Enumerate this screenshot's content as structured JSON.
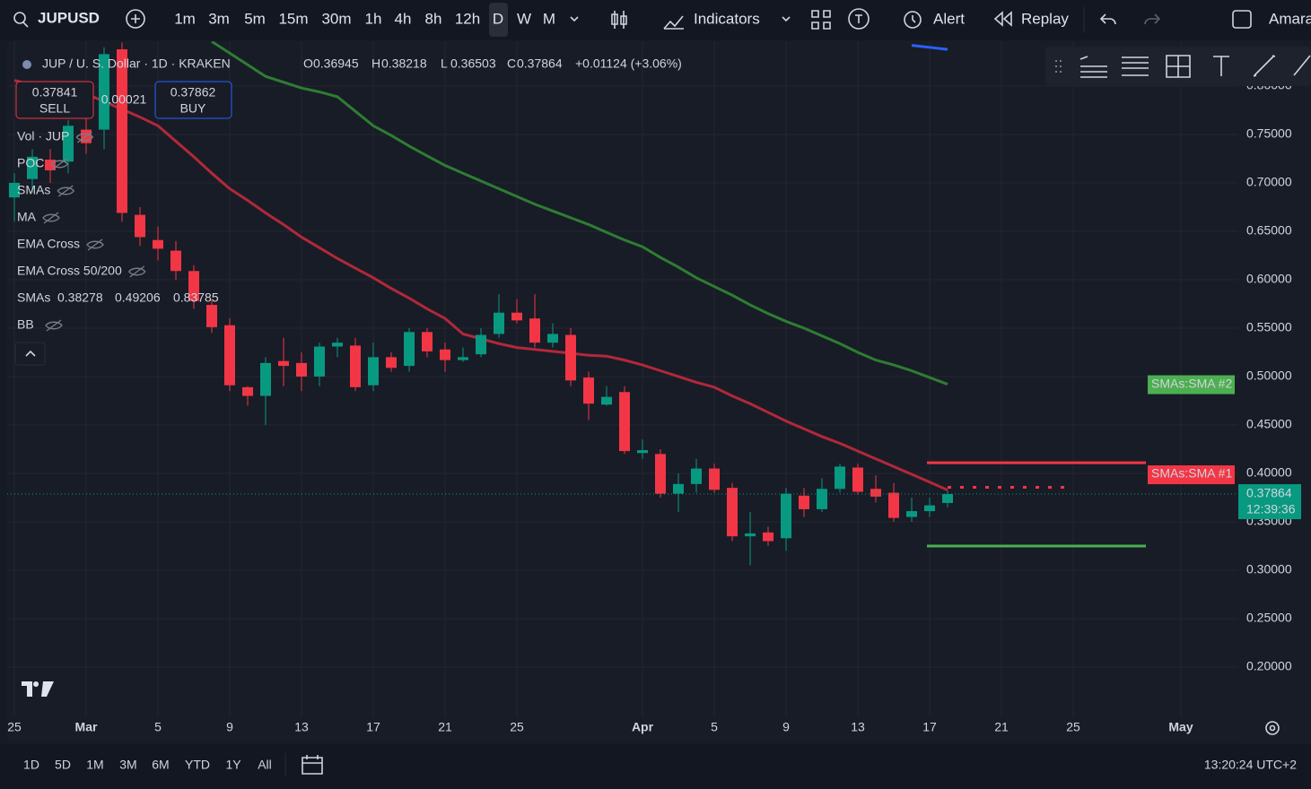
{
  "toolbar": {
    "symbol": "JUPUSD",
    "intervals": [
      "1m",
      "3m",
      "5m",
      "15m",
      "30m",
      "1h",
      "4h",
      "8h",
      "12h",
      "D",
      "W",
      "M"
    ],
    "indicators": "Indicators",
    "alert": "Alert",
    "replay": "Replay",
    "user": "Amara"
  },
  "legend": {
    "symbol": "JUP / U. S. Dollar · 1D · KRAKEN",
    "ohlc_labels": [
      "O",
      "H",
      "L",
      "C"
    ],
    "change": "+0.01124 (+3.06%)",
    "sell_price": "0.37841",
    "sell": "SELL",
    "spread": "0.00021",
    "buy_price": "0.37862",
    "buy": "BUY",
    "indicators": [
      "Vol · JUP",
      "POC",
      "SMAs",
      "MA",
      "EMA Cross",
      "EMA Cross 50/200"
    ],
    "smas": "SMAs",
    "bb": "BB"
  },
  "chart_data": {
    "type": "candlestick",
    "categories": [
      "25",
      null,
      null,
      null,
      "Mar",
      null,
      null,
      null,
      "5",
      null,
      null,
      null,
      "9",
      null,
      null,
      null,
      "13",
      null,
      null,
      null,
      "17",
      null,
      null,
      null,
      "21",
      null,
      null,
      null,
      "25",
      null,
      null,
      null,
      null,
      null,
      null,
      "Apr",
      null,
      null,
      null,
      "5",
      null,
      null,
      null,
      "9",
      null,
      null,
      null,
      "13",
      null,
      null,
      null,
      "17",
      null,
      null,
      null,
      "21",
      null,
      null,
      null,
      "25",
      null,
      null,
      null,
      null,
      null,
      "May"
    ],
    "open": [
      0.685,
      0.704,
      0.724,
      0.722,
      0.755,
      0.755,
      0.838,
      0.667,
      0.641,
      0.63,
      0.609,
      0.574,
      0.553,
      0.489,
      0.48,
      0.516,
      0.514,
      0.5,
      0.531,
      0.532,
      0.491,
      0.52,
      0.511,
      0.546,
      0.528,
      0.517,
      0.523,
      0.544,
      0.566,
      0.56,
      0.535,
      0.543,
      0.499,
      0.471,
      0.484,
      0.421,
      0.42,
      0.379,
      0.389,
      0.405,
      0.385,
      0.335,
      0.339,
      0.333,
      0.377,
      0.363,
      0.384,
      0.406,
      0.384,
      0.38,
      0.355,
      0.361,
      0.36945,
      null,
      null,
      null,
      null,
      null,
      null,
      null,
      null,
      null,
      null,
      null,
      null,
      null
    ],
    "high": [
      0.71,
      0.735,
      0.735,
      0.765,
      0.77,
      0.84,
      0.845,
      0.675,
      0.655,
      0.64,
      0.615,
      0.58,
      0.56,
      0.49,
      0.52,
      0.54,
      0.525,
      0.535,
      0.54,
      0.54,
      0.535,
      0.525,
      0.55,
      0.55,
      0.535,
      0.53,
      0.55,
      0.585,
      0.58,
      0.585,
      0.555,
      0.55,
      0.505,
      0.49,
      0.49,
      0.435,
      0.425,
      0.4,
      0.415,
      0.41,
      0.39,
      0.36,
      0.345,
      0.385,
      0.385,
      0.395,
      0.41,
      0.41,
      0.398,
      0.39,
      0.375,
      0.375,
      0.38218,
      null,
      null,
      null,
      null,
      null,
      null,
      null,
      null,
      null,
      null,
      null,
      null,
      null
    ],
    "low": [
      0.66,
      0.69,
      0.7,
      0.71,
      0.73,
      0.735,
      0.66,
      0.635,
      0.62,
      0.6,
      0.57,
      0.545,
      0.485,
      0.47,
      0.45,
      0.49,
      0.485,
      0.49,
      0.52,
      0.485,
      0.485,
      0.505,
      0.505,
      0.52,
      0.505,
      0.515,
      0.52,
      0.54,
      0.555,
      0.53,
      0.53,
      0.49,
      0.455,
      0.47,
      0.42,
      0.415,
      0.375,
      0.36,
      0.38,
      0.38,
      0.33,
      0.305,
      0.325,
      0.32,
      0.355,
      0.36,
      0.38,
      0.378,
      0.37,
      0.35,
      0.35,
      0.355,
      0.36503,
      null,
      null,
      null,
      null,
      null,
      null,
      null,
      null,
      null,
      null,
      null,
      null,
      null
    ],
    "close": [
      0.7,
      0.727,
      0.713,
      0.759,
      0.741,
      0.833,
      0.669,
      0.644,
      0.632,
      0.609,
      0.578,
      0.551,
      0.491,
      0.48,
      0.514,
      0.511,
      0.5,
      0.531,
      0.535,
      0.489,
      0.52,
      0.509,
      0.546,
      0.526,
      0.517,
      0.52,
      0.543,
      0.566,
      0.558,
      0.535,
      0.544,
      0.496,
      0.472,
      0.479,
      0.423,
      0.424,
      0.379,
      0.389,
      0.405,
      0.383,
      0.335,
      0.338,
      0.33,
      0.379,
      0.363,
      0.384,
      0.407,
      0.381,
      0.376,
      0.354,
      0.361,
      0.367,
      0.37864,
      null,
      null,
      null,
      null,
      null,
      null,
      null,
      null,
      null,
      null,
      null,
      null,
      null
    ],
    "up_color": "#089981",
    "down_color": "#f23645",
    "series": [
      {
        "name": "SMAs:SMA #1",
        "color": "#b2283a",
        "values": [
          0.806,
          0.801,
          0.797,
          0.794,
          0.792,
          0.784,
          0.776,
          0.768,
          0.759,
          0.743,
          0.727,
          0.71,
          0.694,
          0.682,
          0.669,
          0.657,
          0.644,
          0.633,
          0.622,
          0.612,
          0.602,
          0.591,
          0.581,
          0.57,
          0.56,
          0.544,
          0.539,
          0.534,
          0.53,
          0.528,
          0.526,
          0.524,
          0.522,
          0.521,
          0.517,
          0.512,
          0.506,
          0.5,
          0.494,
          0.489,
          0.48,
          0.472,
          0.463,
          0.454,
          0.446,
          0.438,
          0.431,
          0.423,
          0.415,
          0.407,
          0.399,
          0.391,
          0.38278,
          null,
          null,
          null,
          null,
          null,
          null,
          null,
          null,
          null,
          null,
          null,
          null,
          null
        ]
      },
      {
        "name": "SMAs:SMA #2",
        "color": "#2e7d32",
        "values": [
          null,
          null,
          null,
          null,
          null,
          null,
          null,
          null,
          null,
          null,
          null,
          0.846,
          0.834,
          0.822,
          0.81,
          0.804,
          0.798,
          0.794,
          0.789,
          0.774,
          0.759,
          0.749,
          0.738,
          0.728,
          0.718,
          0.71,
          0.702,
          0.694,
          0.686,
          0.678,
          0.671,
          0.664,
          0.657,
          0.649,
          0.641,
          0.634,
          0.623,
          0.613,
          0.602,
          0.593,
          0.584,
          0.574,
          0.565,
          0.557,
          0.55,
          0.542,
          0.534,
          0.525,
          0.517,
          0.512,
          0.506,
          0.499,
          0.49206,
          null,
          null,
          null,
          null,
          null,
          null,
          null,
          null,
          null,
          null,
          null,
          null,
          null
        ]
      },
      {
        "color": "#2962ff",
        "values": [
          null,
          null,
          null,
          null,
          null,
          null,
          null,
          null,
          null,
          null,
          null,
          null,
          null,
          null,
          null,
          null,
          null,
          null,
          null,
          null,
          null,
          null,
          null,
          null,
          null,
          null,
          null,
          null,
          null,
          null,
          null,
          null,
          null,
          null,
          null,
          null,
          null,
          null,
          null,
          null,
          null,
          null,
          null,
          null,
          null,
          null,
          null,
          null,
          null,
          null,
          0.842,
          0.84,
          0.83785,
          null,
          null,
          null,
          null,
          null,
          null,
          null,
          null,
          null,
          null,
          null,
          null,
          null
        ]
      }
    ],
    "hlines": [
      {
        "value": 0.411,
        "color": "#f23645"
      },
      {
        "value": 0.3856,
        "color": "#f23645",
        "style": "dotted"
      },
      {
        "value": 0.325,
        "color": "#4caf50"
      }
    ],
    "label_colors": [
      "#f23645",
      "#4caf50"
    ],
    "countdown": "12:39:36",
    "ylim": [
      0.1481,
      0.8426
    ],
    "yticks": [
      {
        "value": 0.2,
        "label": "0.20000"
      },
      {
        "value": 0.25,
        "label": "0.25000"
      },
      {
        "value": 0.3,
        "label": "0.30000"
      },
      {
        "value": 0.35,
        "label": "0.35000"
      },
      {
        "value": 0.4,
        "label": "0.40000"
      },
      {
        "value": 0.45,
        "label": "0.45000"
      },
      {
        "value": 0.5,
        "label": "0.50000"
      },
      {
        "value": 0.55,
        "label": "0.55000"
      },
      {
        "value": 0.6,
        "label": "0.60000"
      },
      {
        "value": 0.65,
        "label": "0.65000"
      },
      {
        "value": 0.7,
        "label": "0.70000"
      },
      {
        "value": 0.75,
        "label": "0.75000"
      },
      {
        "value": 0.8,
        "label": "0.80000"
      }
    ],
    "grid": true
  },
  "bottom": {
    "ranges": [
      "1D",
      "5D",
      "1M",
      "3M",
      "6M",
      "YTD",
      "1Y",
      "All"
    ],
    "clock": "13:20:24 UTC+2"
  }
}
